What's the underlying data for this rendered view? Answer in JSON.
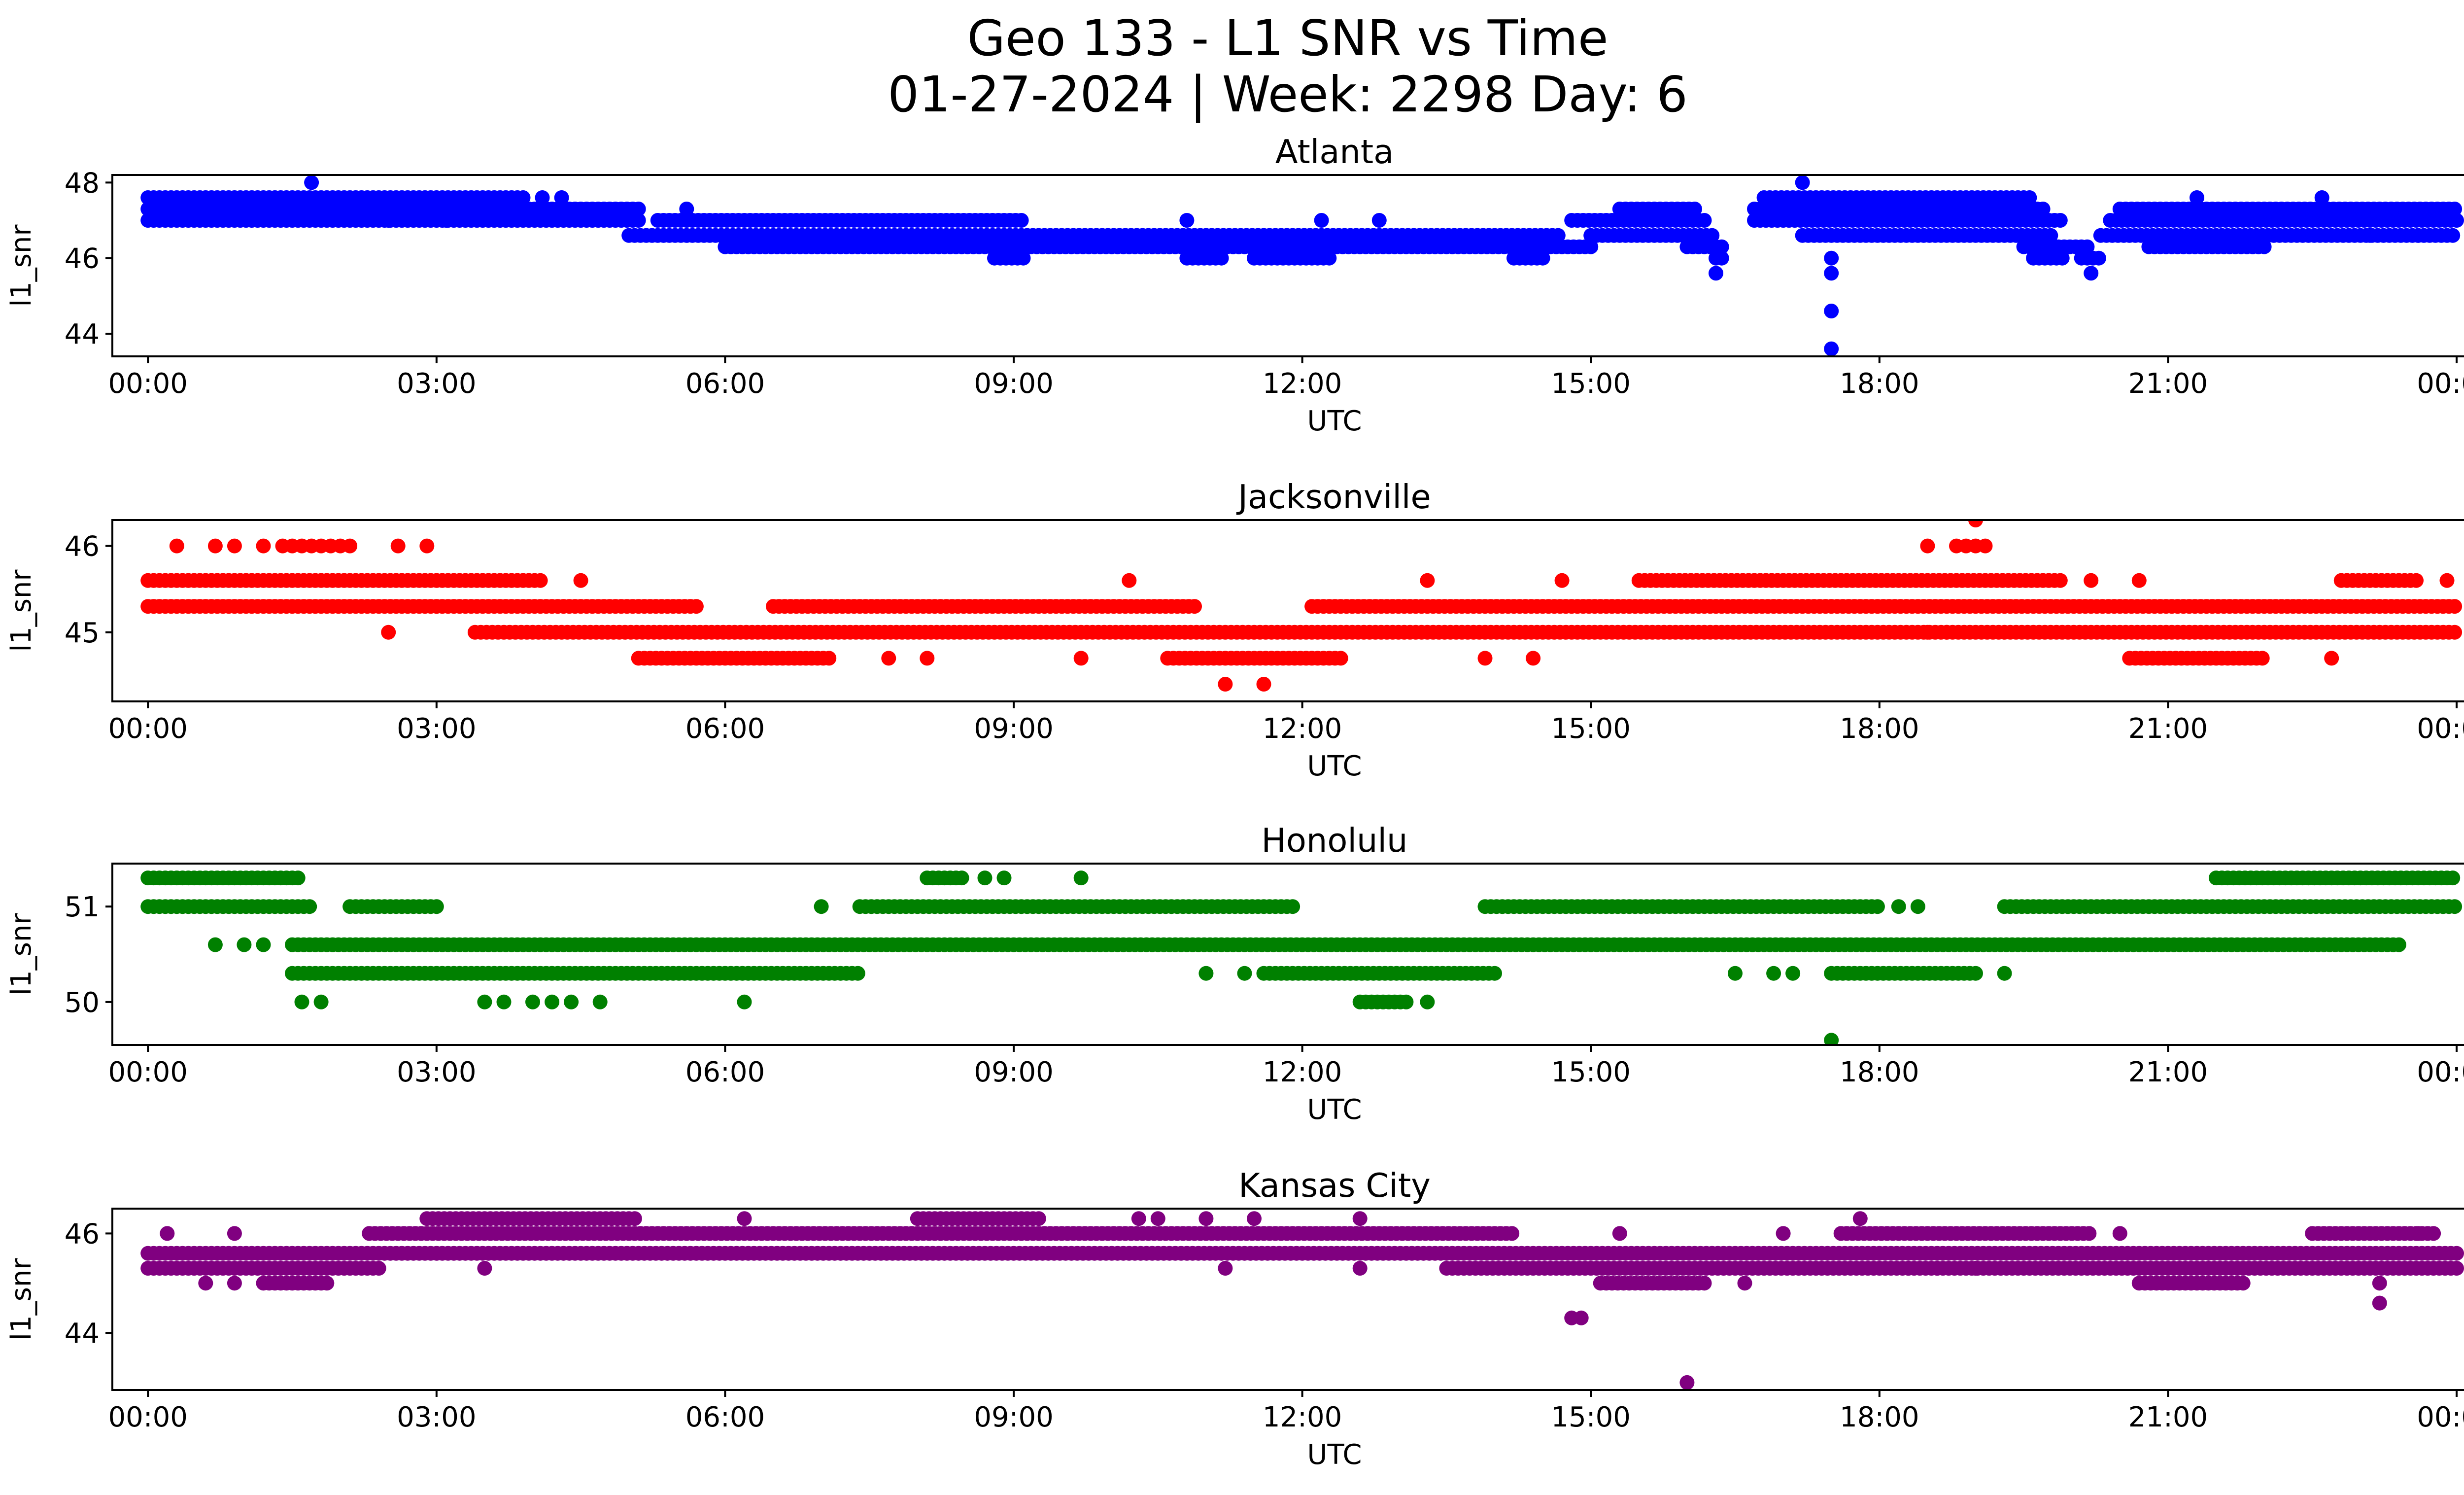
{
  "figure": {
    "title_line1": "Geo 133 - L1 SNR vs Time",
    "title_line2": "01-27-2024 | Week: 2298 Day: 6"
  },
  "chart_data": [
    {
      "type": "scatter",
      "title": "Atlanta",
      "xlabel": "UTC",
      "ylabel": "l1_snr",
      "color": "#0000ff",
      "xlim": [
        -0.37,
        25.04
      ],
      "ylim": [
        43.4,
        48.2
      ],
      "xticks": [
        "00:00",
        "03:00",
        "06:00",
        "09:00",
        "12:00",
        "15:00",
        "18:00",
        "21:00",
        "00:00"
      ],
      "yticks": [
        44,
        46,
        48
      ],
      "bands": [
        {
          "y": 47.6,
          "x": [
            [
              0.0,
              3.9
            ],
            [
              16.8,
              19.6
            ]
          ]
        },
        {
          "y": 47.3,
          "x": [
            [
              0.0,
              5.1
            ],
            [
              15.3,
              16.1
            ],
            [
              16.7,
              19.7
            ],
            [
              20.5,
              24.0
            ]
          ]
        },
        {
          "y": 47.0,
          "x": [
            [
              0.0,
              5.1
            ],
            [
              5.3,
              9.1
            ],
            [
              14.8,
              16.2
            ],
            [
              16.7,
              19.9
            ],
            [
              20.4,
              24.0
            ]
          ]
        },
        {
          "y": 46.6,
          "x": [
            [
              5.0,
              14.7
            ],
            [
              15.0,
              16.3
            ],
            [
              17.2,
              19.8
            ],
            [
              20.3,
              24.0
            ]
          ]
        },
        {
          "y": 46.3,
          "x": [
            [
              6.0,
              15.0
            ],
            [
              16.0,
              16.4
            ],
            [
              19.5,
              20.2
            ],
            [
              20.8,
              22.0
            ]
          ]
        },
        {
          "y": 46.0,
          "x": [
            [
              8.8,
              9.1
            ],
            [
              10.8,
              11.2
            ],
            [
              11.5,
              12.3
            ],
            [
              14.2,
              14.5
            ],
            [
              16.3,
              16.4
            ],
            [
              19.6,
              19.9
            ],
            [
              20.1,
              20.3
            ]
          ]
        }
      ],
      "points": [
        {
          "x": 1.7,
          "y": 48.0
        },
        {
          "x": 17.2,
          "y": 48.0
        },
        {
          "x": 2.5,
          "y": 47.0
        },
        {
          "x": 3.1,
          "y": 47.0
        },
        {
          "x": 4.1,
          "y": 47.6
        },
        {
          "x": 4.3,
          "y": 47.6
        },
        {
          "x": 5.6,
          "y": 47.3
        },
        {
          "x": 10.8,
          "y": 47.0
        },
        {
          "x": 12.2,
          "y": 47.0
        },
        {
          "x": 12.8,
          "y": 47.0
        },
        {
          "x": 16.3,
          "y": 45.6
        },
        {
          "x": 17.5,
          "y": 46.0
        },
        {
          "x": 17.5,
          "y": 45.6
        },
        {
          "x": 17.5,
          "y": 44.6
        },
        {
          "x": 17.5,
          "y": 43.6
        },
        {
          "x": 20.2,
          "y": 45.6
        },
        {
          "x": 21.3,
          "y": 47.6
        },
        {
          "x": 22.6,
          "y": 47.6
        },
        {
          "x": 23.1,
          "y": 46.6
        },
        {
          "x": 23.6,
          "y": 46.6
        }
      ]
    },
    {
      "type": "scatter",
      "title": "Jacksonville",
      "xlabel": "UTC",
      "ylabel": "l1_snr",
      "color": "#ff0000",
      "xlim": [
        -0.37,
        25.04
      ],
      "ylim": [
        44.2,
        46.3
      ],
      "xticks": [
        "00:00",
        "03:00",
        "06:00",
        "09:00",
        "12:00",
        "15:00",
        "18:00",
        "21:00",
        "00:00"
      ],
      "yticks": [
        45,
        46
      ],
      "bands": [
        {
          "y": 45.6,
          "x": [
            [
              0.0,
              4.1
            ],
            [
              15.5,
              19.9
            ],
            [
              22.8,
              23.6
            ]
          ]
        },
        {
          "y": 45.3,
          "x": [
            [
              0.0,
              5.7
            ],
            [
              6.5,
              10.9
            ],
            [
              12.1,
              24.0
            ]
          ]
        },
        {
          "y": 45.0,
          "x": [
            [
              3.4,
              24.0
            ]
          ]
        },
        {
          "y": 44.7,
          "x": [
            [
              5.1,
              7.1
            ],
            [
              10.6,
              12.4
            ],
            [
              20.6,
              22.0
            ]
          ]
        }
      ],
      "points": [
        {
          "x": 0.3,
          "y": 46.0
        },
        {
          "x": 0.7,
          "y": 46.0
        },
        {
          "x": 0.9,
          "y": 46.0
        },
        {
          "x": 1.2,
          "y": 46.0
        },
        {
          "x": 1.4,
          "y": 46.0
        },
        {
          "x": 1.5,
          "y": 46.0
        },
        {
          "x": 1.6,
          "y": 46.0
        },
        {
          "x": 1.7,
          "y": 46.0
        },
        {
          "x": 1.8,
          "y": 46.0
        },
        {
          "x": 1.9,
          "y": 46.0
        },
        {
          "x": 2.0,
          "y": 46.0
        },
        {
          "x": 2.1,
          "y": 46.0
        },
        {
          "x": 2.6,
          "y": 46.0
        },
        {
          "x": 2.9,
          "y": 46.0
        },
        {
          "x": 4.5,
          "y": 45.6
        },
        {
          "x": 2.5,
          "y": 45.0
        },
        {
          "x": 10.2,
          "y": 45.6
        },
        {
          "x": 13.3,
          "y": 45.6
        },
        {
          "x": 14.7,
          "y": 45.6
        },
        {
          "x": 11.2,
          "y": 44.4
        },
        {
          "x": 11.6,
          "y": 44.4
        },
        {
          "x": 9.7,
          "y": 44.7
        },
        {
          "x": 7.7,
          "y": 44.7
        },
        {
          "x": 8.1,
          "y": 44.7
        },
        {
          "x": 13.9,
          "y": 44.7
        },
        {
          "x": 14.4,
          "y": 44.7
        },
        {
          "x": 18.5,
          "y": 46.0
        },
        {
          "x": 18.8,
          "y": 46.0
        },
        {
          "x": 18.9,
          "y": 46.0
        },
        {
          "x": 19.0,
          "y": 46.0
        },
        {
          "x": 19.1,
          "y": 46.0
        },
        {
          "x": 19.0,
          "y": 46.3
        },
        {
          "x": 18.5,
          "y": 45.0
        },
        {
          "x": 18.7,
          "y": 45.0
        },
        {
          "x": 20.2,
          "y": 45.6
        },
        {
          "x": 20.7,
          "y": 45.6
        },
        {
          "x": 22.7,
          "y": 44.7
        },
        {
          "x": 23.9,
          "y": 45.6
        }
      ]
    },
    {
      "type": "scatter",
      "title": "Honolulu",
      "xlabel": "UTC",
      "ylabel": "l1_snr",
      "color": "#008000",
      "xlim": [
        -0.37,
        25.04
      ],
      "ylim": [
        49.55,
        51.45
      ],
      "xticks": [
        "00:00",
        "03:00",
        "06:00",
        "09:00",
        "12:00",
        "15:00",
        "18:00",
        "21:00",
        "00:00"
      ],
      "yticks": [
        50,
        51
      ],
      "bands": [
        {
          "y": 51.3,
          "x": [
            [
              0.0,
              1.6
            ],
            [
              8.1,
              8.5
            ],
            [
              21.5,
              24.0
            ]
          ]
        },
        {
          "y": 51.0,
          "x": [
            [
              0.0,
              1.7
            ],
            [
              2.1,
              3.0
            ],
            [
              7.4,
              11.9
            ],
            [
              13.9,
              18.0
            ],
            [
              19.3,
              24.0
            ]
          ]
        },
        {
          "y": 50.6,
          "x": [
            [
              1.5,
              23.4
            ]
          ]
        },
        {
          "y": 50.3,
          "x": [
            [
              1.5,
              7.4
            ],
            [
              11.6,
              14.0
            ],
            [
              17.5,
              19.0
            ]
          ]
        },
        {
          "y": 50.0,
          "x": [
            [
              12.6,
              13.1
            ]
          ]
        }
      ],
      "points": [
        {
          "x": 0.7,
          "y": 50.6
        },
        {
          "x": 1.0,
          "y": 50.6
        },
        {
          "x": 1.2,
          "y": 50.6
        },
        {
          "x": 1.6,
          "y": 50.0
        },
        {
          "x": 1.8,
          "y": 50.0
        },
        {
          "x": 3.5,
          "y": 50.0
        },
        {
          "x": 3.7,
          "y": 50.0
        },
        {
          "x": 4.0,
          "y": 50.0
        },
        {
          "x": 4.2,
          "y": 50.0
        },
        {
          "x": 4.4,
          "y": 50.0
        },
        {
          "x": 4.7,
          "y": 50.0
        },
        {
          "x": 6.2,
          "y": 50.0
        },
        {
          "x": 7.0,
          "y": 51.0
        },
        {
          "x": 8.7,
          "y": 51.3
        },
        {
          "x": 8.9,
          "y": 51.3
        },
        {
          "x": 9.7,
          "y": 51.3
        },
        {
          "x": 11.0,
          "y": 50.3
        },
        {
          "x": 11.4,
          "y": 50.3
        },
        {
          "x": 13.3,
          "y": 50.0
        },
        {
          "x": 16.5,
          "y": 50.3
        },
        {
          "x": 16.9,
          "y": 50.3
        },
        {
          "x": 17.1,
          "y": 50.3
        },
        {
          "x": 18.2,
          "y": 51.0
        },
        {
          "x": 18.4,
          "y": 51.0
        },
        {
          "x": 19.3,
          "y": 50.3
        },
        {
          "x": 17.5,
          "y": 49.6
        }
      ]
    },
    {
      "type": "scatter",
      "title": "Kansas City",
      "xlabel": "UTC",
      "ylabel": "l1_snr",
      "color": "#800080",
      "xlim": [
        -0.37,
        25.04
      ],
      "ylim": [
        42.85,
        46.5
      ],
      "xticks": [
        "00:00",
        "03:00",
        "06:00",
        "09:00",
        "12:00",
        "15:00",
        "18:00",
        "21:00",
        "00:00"
      ],
      "yticks": [
        44,
        46
      ],
      "bands": [
        {
          "y": 46.3,
          "x": [
            [
              2.9,
              5.1
            ],
            [
              8.0,
              9.3
            ]
          ]
        },
        {
          "y": 46.0,
          "x": [
            [
              2.3,
              14.2
            ],
            [
              17.6,
              20.2
            ],
            [
              22.5,
              23.8
            ]
          ]
        },
        {
          "y": 45.6,
          "x": [
            [
              0.0,
              24.0
            ]
          ]
        },
        {
          "y": 45.3,
          "x": [
            [
              0.0,
              2.4
            ],
            [
              13.5,
              24.0
            ]
          ]
        },
        {
          "y": 45.0,
          "x": [
            [
              1.2,
              1.9
            ],
            [
              15.1,
              16.2
            ],
            [
              20.7,
              21.8
            ]
          ]
        }
      ],
      "points": [
        {
          "x": 0.2,
          "y": 46.0
        },
        {
          "x": 0.9,
          "y": 46.0
        },
        {
          "x": 0.6,
          "y": 45.0
        },
        {
          "x": 0.9,
          "y": 45.0
        },
        {
          "x": 3.5,
          "y": 45.3
        },
        {
          "x": 6.2,
          "y": 46.3
        },
        {
          "x": 10.3,
          "y": 46.3
        },
        {
          "x": 10.5,
          "y": 46.3
        },
        {
          "x": 11.0,
          "y": 46.3
        },
        {
          "x": 11.5,
          "y": 46.3
        },
        {
          "x": 11.2,
          "y": 45.3
        },
        {
          "x": 12.6,
          "y": 46.3
        },
        {
          "x": 12.6,
          "y": 45.3
        },
        {
          "x": 14.8,
          "y": 44.3
        },
        {
          "x": 14.9,
          "y": 44.3
        },
        {
          "x": 15.3,
          "y": 46.0
        },
        {
          "x": 16.0,
          "y": 43.0
        },
        {
          "x": 16.6,
          "y": 45.0
        },
        {
          "x": 17.0,
          "y": 46.0
        },
        {
          "x": 17.8,
          "y": 46.3
        },
        {
          "x": 18.3,
          "y": 45.3
        },
        {
          "x": 18.6,
          "y": 45.3
        },
        {
          "x": 19.0,
          "y": 45.3
        },
        {
          "x": 20.5,
          "y": 46.0
        },
        {
          "x": 23.2,
          "y": 45.0
        },
        {
          "x": 23.2,
          "y": 44.6
        },
        {
          "x": 23.6,
          "y": 46.0
        }
      ]
    }
  ]
}
